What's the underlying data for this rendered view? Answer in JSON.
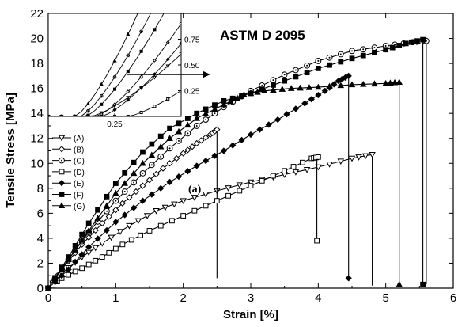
{
  "chart_data": {
    "type": "line",
    "title": "ASTM D 2095",
    "annotation": "(a)",
    "xlabel": "Strain [%]",
    "ylabel": "Tensile Stress [MPa]",
    "xlim": [
      0,
      6
    ],
    "ylim": [
      0,
      22
    ],
    "xticks": [
      0,
      1,
      2,
      3,
      4,
      5,
      6
    ],
    "yticks": [
      0,
      2,
      4,
      6,
      8,
      10,
      12,
      14,
      16,
      18,
      20,
      22
    ],
    "grid": false,
    "legend_position": "left-middle",
    "series": [
      {
        "name": "(A)",
        "marker": "triangle-down-open",
        "color": "#000000",
        "x": [
          0,
          0.2,
          0.5,
          0.8,
          1.2,
          1.6,
          2.0,
          2.5,
          3.0,
          3.5,
          4.0,
          4.5,
          4.8
        ],
        "y": [
          0,
          1.2,
          2.5,
          3.6,
          5.0,
          6.2,
          7.0,
          7.8,
          8.5,
          9.1,
          9.7,
          10.4,
          10.7
        ],
        "break_x": 4.8,
        "break_y": 0.2
      },
      {
        "name": "(B)",
        "marker": "diamond-open",
        "color": "#000000",
        "x": [
          0,
          0.2,
          0.5,
          0.8,
          1.1,
          1.4,
          1.7,
          2.0,
          2.2,
          2.4,
          2.5
        ],
        "y": [
          0,
          1.5,
          3.5,
          5.2,
          6.8,
          8.2,
          9.6,
          10.8,
          11.6,
          12.3,
          12.7
        ],
        "break_x": 2.5,
        "break_y": 0.8
      },
      {
        "name": "(C)",
        "marker": "circle-dot-open",
        "color": "#000000",
        "x": [
          0,
          0.3,
          0.6,
          1.0,
          1.4,
          1.8,
          2.2,
          2.6,
          3.0,
          3.5,
          4.0,
          4.5,
          5.0,
          5.4,
          5.6
        ],
        "y": [
          0,
          2.3,
          4.5,
          7.0,
          9.2,
          11.2,
          13.0,
          14.5,
          15.8,
          17.1,
          18.2,
          19.0,
          19.4,
          19.7,
          19.8
        ],
        "break_x": 5.6,
        "break_y": 0.3
      },
      {
        "name": "(D)",
        "marker": "square-open",
        "color": "#000000",
        "x": [
          0,
          0.2,
          0.5,
          0.8,
          1.1,
          1.5,
          2.0,
          2.5,
          3.0,
          3.5,
          3.9,
          4.0
        ],
        "y": [
          0,
          0.8,
          1.6,
          2.5,
          3.5,
          4.6,
          5.8,
          7.0,
          8.2,
          9.4,
          10.4,
          10.5
        ],
        "break_x": 3.98,
        "break_y": 3.8
      },
      {
        "name": "(E)",
        "marker": "diamond-filled",
        "color": "#000000",
        "x": [
          0,
          0.3,
          0.6,
          1.0,
          1.4,
          1.8,
          2.2,
          2.6,
          3.0,
          3.4,
          3.8,
          4.1,
          4.3,
          4.45
        ],
        "y": [
          0,
          1.5,
          3.3,
          5.3,
          7.0,
          8.5,
          9.8,
          11.0,
          12.3,
          13.5,
          14.8,
          15.8,
          16.6,
          17.0
        ],
        "break_x": 4.45,
        "break_y": 0.8
      },
      {
        "name": "(F)",
        "marker": "square-filled",
        "color": "#000000",
        "x": [
          0,
          0.3,
          0.6,
          1.0,
          1.4,
          1.8,
          2.2,
          2.6,
          3.0,
          3.5,
          4.0,
          4.5,
          5.0,
          5.3,
          5.55
        ],
        "y": [
          0,
          2.5,
          5.2,
          8.4,
          10.9,
          12.8,
          14.0,
          15.0,
          15.6,
          16.6,
          17.6,
          18.4,
          19.1,
          19.6,
          19.9
        ],
        "break_x": 5.55,
        "break_y": 0.3
      },
      {
        "name": "(G)",
        "marker": "triangle-up-filled",
        "color": "#000000",
        "x": [
          0,
          0.3,
          0.6,
          1.0,
          1.4,
          1.8,
          2.2,
          2.6,
          2.9,
          3.2,
          3.6,
          4.0,
          4.5,
          5.0,
          5.2
        ],
        "y": [
          0,
          2.3,
          4.6,
          7.6,
          10.0,
          12.0,
          13.6,
          14.7,
          15.5,
          15.8,
          16.0,
          16.1,
          16.3,
          16.4,
          16.5
        ],
        "break_x": 5.2,
        "break_y": 0.3
      }
    ],
    "inset": {
      "xlim": [
        0,
        0.5
      ],
      "ylim": [
        0,
        1
      ],
      "xticks": [
        0.25
      ],
      "yticks": [
        0.25,
        0.5,
        0.75
      ],
      "yaxis_side": "right"
    }
  }
}
